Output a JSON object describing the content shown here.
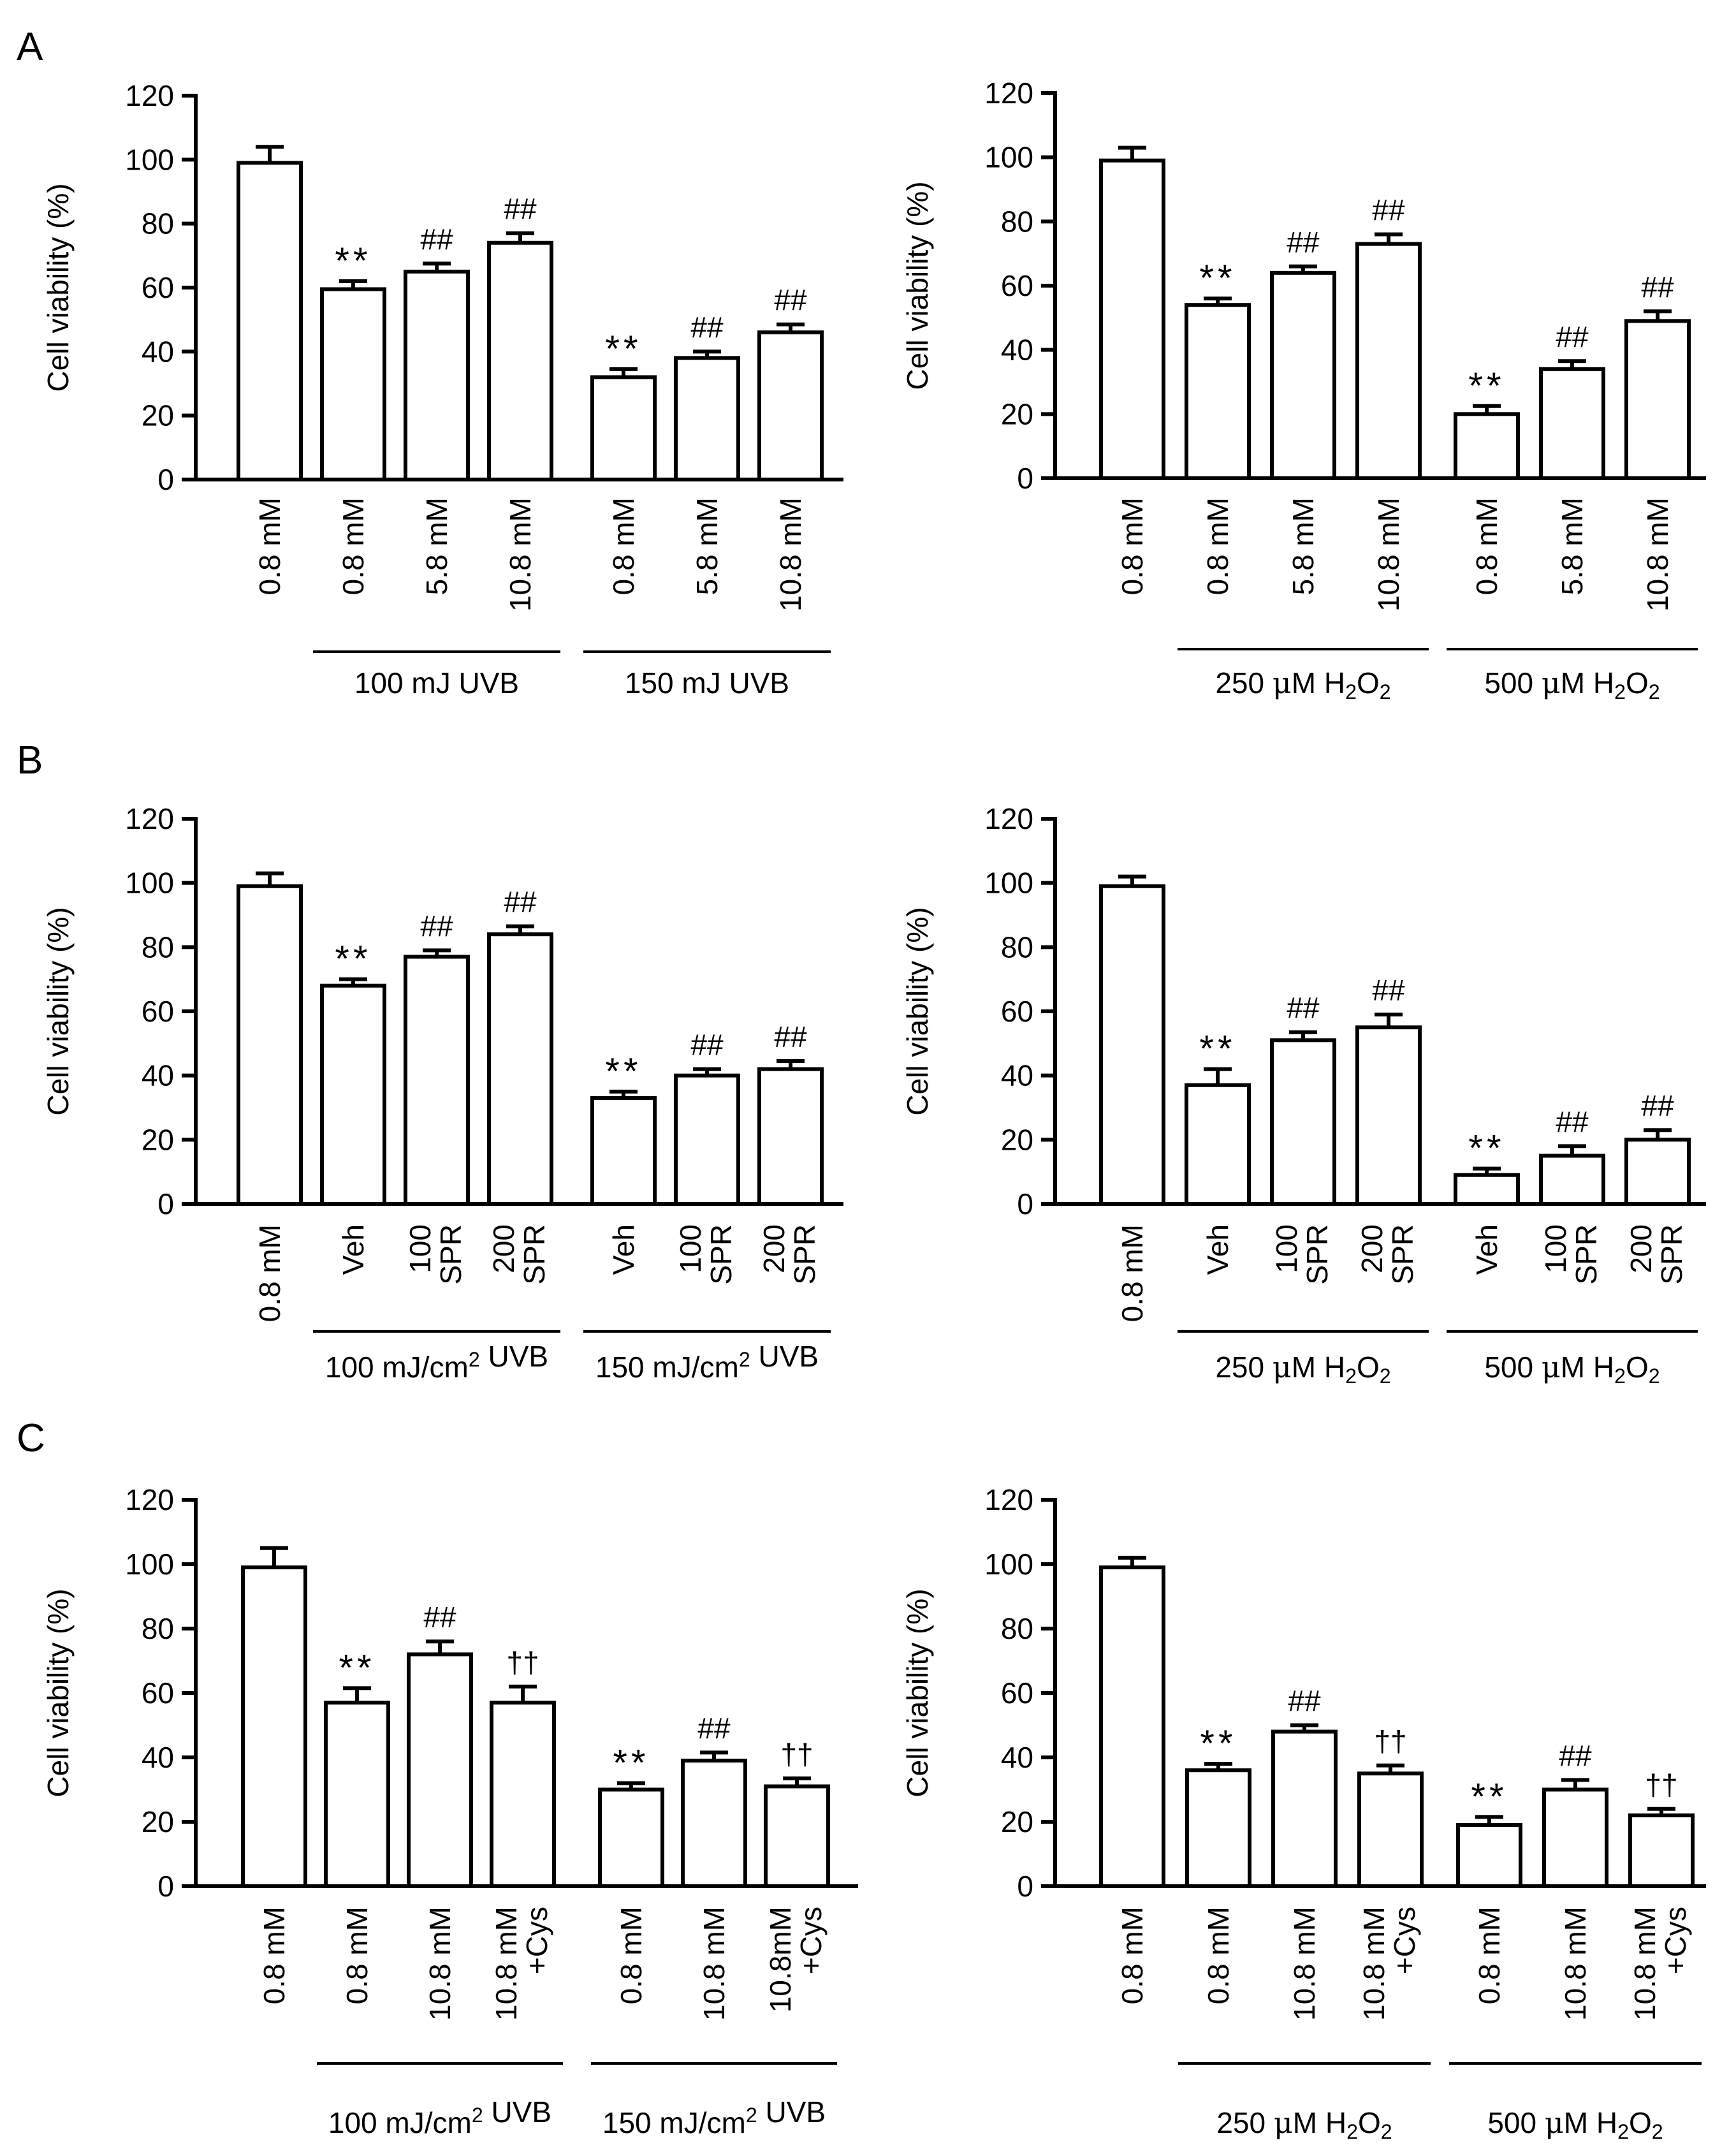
{
  "figure": {
    "panel_letters": [
      "A",
      "B",
      "C"
    ]
  },
  "chart_data": [
    {
      "id": "A-left",
      "panel": "A",
      "type": "bar",
      "ylabel": "Cell viability  (%)",
      "ylim": [
        0,
        120
      ],
      "yticks": [
        0,
        20,
        40,
        60,
        80,
        100,
        120
      ],
      "categories": [
        [
          "0.8 mM"
        ],
        [
          "0.8 mM"
        ],
        [
          "5.8 mM"
        ],
        [
          "10.8 mM"
        ],
        [
          "0.8 mM"
        ],
        [
          "5.8 mM"
        ],
        [
          "10.8 mM"
        ]
      ],
      "values": [
        99,
        59.5,
        65,
        74,
        32,
        38,
        46
      ],
      "errors": [
        5,
        2.5,
        2.5,
        3,
        2.5,
        2,
        2.5
      ],
      "significance": [
        "",
        "**",
        "##",
        "##",
        "**",
        "##",
        "##"
      ],
      "groups": [
        {
          "start": 1,
          "end": 3,
          "label": "100 mJ UVB"
        },
        {
          "start": 4,
          "end": 6,
          "label": "150 mJ UVB"
        }
      ]
    },
    {
      "id": "A-right",
      "panel": "A",
      "type": "bar",
      "ylabel": "Cell viability  (%)",
      "ylim": [
        0,
        120
      ],
      "yticks": [
        0,
        20,
        40,
        60,
        80,
        100,
        120
      ],
      "categories": [
        [
          "0.8 mM"
        ],
        [
          "0.8 mM"
        ],
        [
          "5.8 mM"
        ],
        [
          "10.8 mM"
        ],
        [
          "0.8 mM"
        ],
        [
          "5.8 mM"
        ],
        [
          "10.8 mM"
        ]
      ],
      "values": [
        99,
        54,
        64,
        73,
        20,
        34,
        49
      ],
      "errors": [
        4,
        2,
        2,
        3,
        2.5,
        2.5,
        3
      ],
      "significance": [
        "",
        "**",
        "##",
        "##",
        "**",
        "##",
        "##"
      ],
      "groups": [
        {
          "start": 1,
          "end": 3,
          "label": "250 μM H2O2"
        },
        {
          "start": 4,
          "end": 6,
          "label": "500 μM H2O2"
        }
      ]
    },
    {
      "id": "B-left",
      "panel": "B",
      "type": "bar",
      "ylabel": "Cell viability  (%)",
      "ylim": [
        0,
        120
      ],
      "yticks": [
        0,
        20,
        40,
        60,
        80,
        100,
        120
      ],
      "categories": [
        [
          "0.8 mM"
        ],
        [
          "Veh"
        ],
        [
          "100",
          "SPR"
        ],
        [
          "200",
          "SPR"
        ],
        [
          "Veh"
        ],
        [
          "100",
          "SPR"
        ],
        [
          "200",
          "SPR"
        ]
      ],
      "values": [
        99,
        68,
        77,
        84,
        33,
        40,
        42
      ],
      "errors": [
        4,
        2,
        2,
        2.5,
        2,
        2,
        2.5
      ],
      "significance": [
        "",
        "**",
        "##",
        "##",
        "**",
        "##",
        "##"
      ],
      "groups": [
        {
          "start": 1,
          "end": 3,
          "label": "100 mJ/cm2 UVB"
        },
        {
          "start": 4,
          "end": 6,
          "label": "150 mJ/cm2 UVB"
        }
      ]
    },
    {
      "id": "B-right",
      "panel": "B",
      "type": "bar",
      "ylabel": "Cell viability  (%)",
      "ylim": [
        0,
        120
      ],
      "yticks": [
        0,
        20,
        40,
        60,
        80,
        100,
        120
      ],
      "categories": [
        [
          "0.8 mM"
        ],
        [
          "Veh"
        ],
        [
          "100",
          "SPR"
        ],
        [
          "200",
          "SPR"
        ],
        [
          "Veh"
        ],
        [
          "100",
          "SPR"
        ],
        [
          "200",
          "SPR"
        ]
      ],
      "values": [
        99,
        37,
        51,
        55,
        9,
        15,
        20
      ],
      "errors": [
        3,
        5,
        2.5,
        4,
        2,
        3,
        3
      ],
      "significance": [
        "",
        "**",
        "##",
        "##",
        "**",
        "##",
        "##"
      ],
      "groups": [
        {
          "start": 1,
          "end": 3,
          "label": "250 μM H2O2"
        },
        {
          "start": 4,
          "end": 6,
          "label": "500 μM H2O2"
        }
      ]
    },
    {
      "id": "C-left",
      "panel": "C",
      "type": "bar",
      "ylabel": "Cell viability  (%)",
      "ylim": [
        0,
        120
      ],
      "yticks": [
        0,
        20,
        40,
        60,
        80,
        100,
        120
      ],
      "categories": [
        [
          "0.8 mM"
        ],
        [
          "0.8 mM"
        ],
        [
          "10.8 mM"
        ],
        [
          "10.8 mM",
          "+Cys"
        ],
        [
          "0.8 mM"
        ],
        [
          "10.8 mM"
        ],
        [
          "10.8mM",
          "+Cys"
        ]
      ],
      "values": [
        99,
        57,
        72,
        57,
        30,
        39,
        31
      ],
      "errors": [
        6,
        4.5,
        4,
        5,
        2,
        2.5,
        2.5
      ],
      "significance": [
        "",
        "**",
        "##",
        "††",
        "**",
        "##",
        "††"
      ],
      "groups": [
        {
          "start": 1,
          "end": 3,
          "label": "100 mJ/cm2 UVB"
        },
        {
          "start": 4,
          "end": 6,
          "label": "150 mJ/cm2 UVB"
        }
      ]
    },
    {
      "id": "C-right",
      "panel": "C",
      "type": "bar",
      "ylabel": "Cell viability  (%)",
      "ylim": [
        0,
        120
      ],
      "yticks": [
        0,
        20,
        40,
        60,
        80,
        100,
        120
      ],
      "categories": [
        [
          "0.8 mM"
        ],
        [
          "0.8 mM"
        ],
        [
          "10.8 mM"
        ],
        [
          "10.8 mM",
          "+Cys"
        ],
        [
          "0.8 mM"
        ],
        [
          "10.8 mM"
        ],
        [
          "10.8 mM",
          "+Cys"
        ]
      ],
      "values": [
        99,
        36,
        48,
        35,
        19,
        30,
        22
      ],
      "errors": [
        3,
        2,
        2,
        2.5,
        2.5,
        3,
        2
      ],
      "significance": [
        "",
        "**",
        "##",
        "††",
        "**",
        "##",
        "††"
      ],
      "groups": [
        {
          "start": 1,
          "end": 3,
          "label": "250 μM H2O2"
        },
        {
          "start": 4,
          "end": 6,
          "label": "500 μM H2O2"
        }
      ]
    }
  ]
}
